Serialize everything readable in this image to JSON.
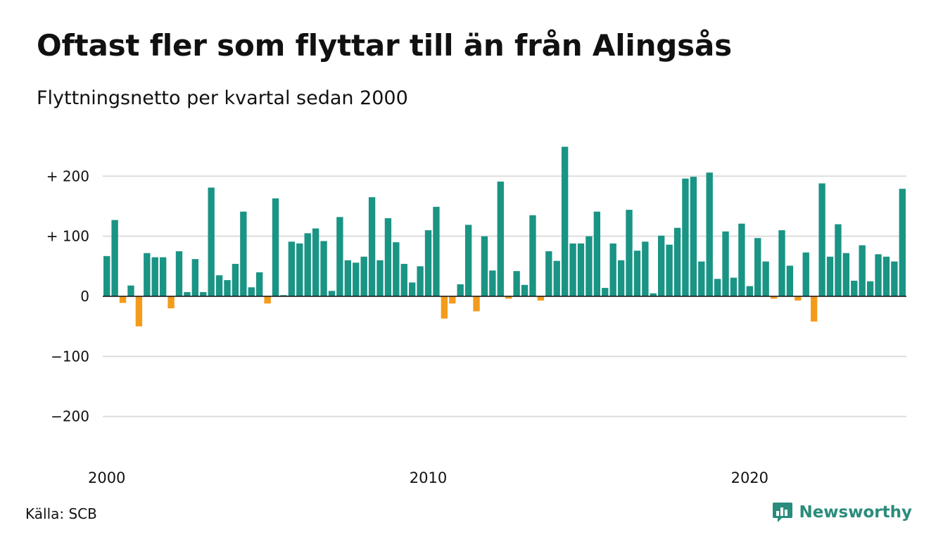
{
  "title": "Oftast fler som flyttar till än från Alingsås",
  "subtitle": "Flyttningsnetto per kvartal sedan 2000",
  "source": "Källa: SCB",
  "brand": {
    "label": "Newsworthy",
    "icon": "newsworthy-logo-icon"
  },
  "colors": {
    "positive": "#1a9484",
    "negative": "#f49b1b",
    "grid": "#dddddd",
    "axis": "#111111"
  },
  "chart_data": {
    "type": "bar",
    "title": "Oftast fler som flyttar till än från Alingsås",
    "subtitle": "Flyttningsnetto per kvartal sedan 2000",
    "xlabel": "",
    "ylabel": "",
    "ylim": [
      -250,
      260
    ],
    "grid": true,
    "x_start_year": 2000,
    "periods_per_year": 4,
    "y_ticks": [
      200,
      100,
      0,
      -100,
      -200
    ],
    "y_tick_labels": [
      "+ 200",
      "+ 100",
      "0",
      "−100",
      "−200"
    ],
    "x_ticks": [
      2000,
      2010,
      2020
    ],
    "x_tick_labels": [
      "2000",
      "2010",
      "2020"
    ],
    "values": [
      67,
      127,
      -11,
      18,
      -50,
      72,
      65,
      65,
      -20,
      75,
      7,
      62,
      7,
      181,
      35,
      27,
      54,
      141,
      15,
      40,
      -12,
      163,
      2,
      91,
      88,
      105,
      113,
      92,
      9,
      132,
      60,
      56,
      66,
      165,
      60,
      130,
      90,
      54,
      23,
      50,
      110,
      149,
      -37,
      -12,
      20,
      119,
      -25,
      100,
      43,
      191,
      -4,
      42,
      19,
      135,
      -7,
      75,
      59,
      249,
      88,
      88,
      100,
      141,
      14,
      88,
      60,
      144,
      76,
      91,
      5,
      101,
      86,
      114,
      196,
      199,
      58,
      206,
      29,
      108,
      31,
      121,
      17,
      97,
      58,
      -4,
      110,
      51,
      -7,
      73,
      -42,
      188,
      66,
      120,
      72,
      26,
      85,
      25,
      70,
      66,
      58,
      179
    ]
  }
}
